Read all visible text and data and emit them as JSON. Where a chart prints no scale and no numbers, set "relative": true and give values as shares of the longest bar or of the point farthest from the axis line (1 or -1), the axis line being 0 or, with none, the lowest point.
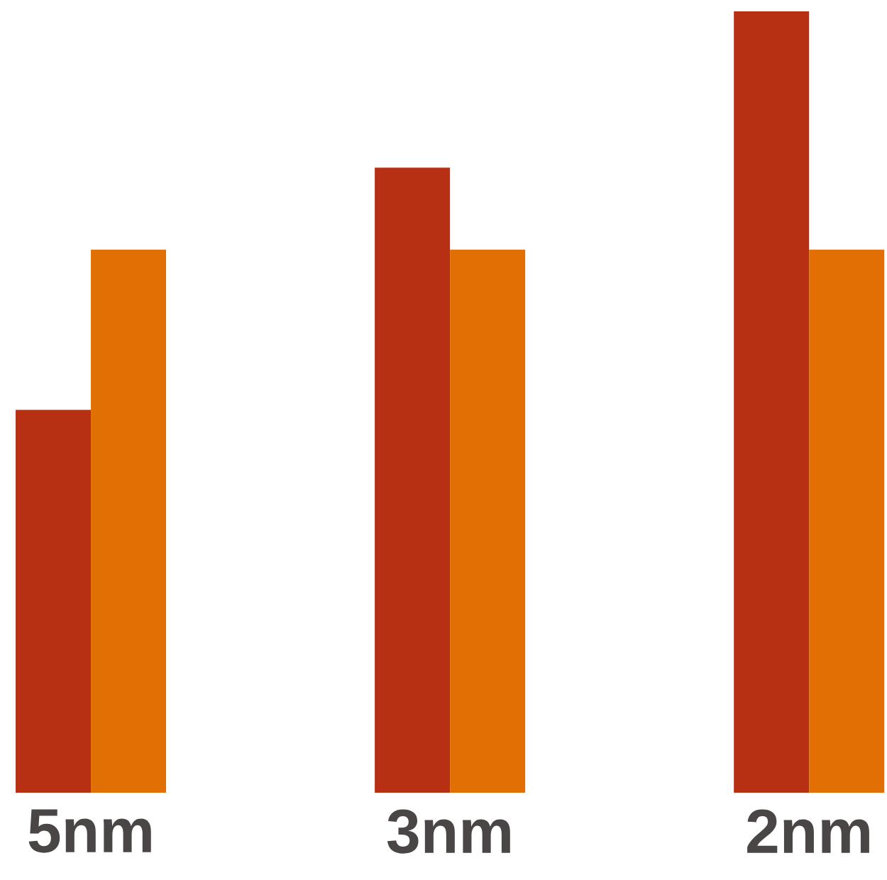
{
  "chart_data": {
    "type": "bar",
    "relative": true,
    "categories": [
      "5nm",
      "3nm",
      "2nm"
    ],
    "series": [
      {
        "color": "#b83013",
        "values": [
          0.49,
          0.8,
          1
        ]
      },
      {
        "color": "#e26f04",
        "values": [
          0.695,
          0.695,
          0.695
        ]
      }
    ]
  }
}
